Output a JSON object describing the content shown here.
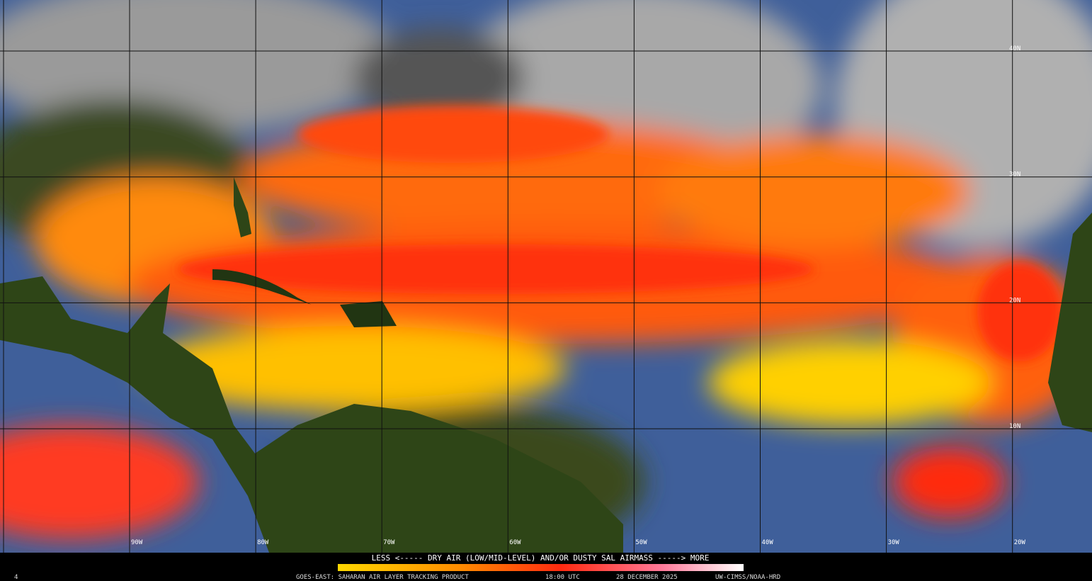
{
  "map": {
    "lat_labels": [
      "40N",
      "30N",
      "20N",
      "10N"
    ],
    "lon_labels": [
      "90W",
      "80W",
      "70W",
      "60W",
      "50W",
      "40W",
      "30W",
      "20W"
    ]
  },
  "legend": {
    "caption": "LESS <----- DRY AIR (LOW/MID-LEVEL) AND/OR DUSTY SAL AIRMASS -----> MORE"
  },
  "footer": {
    "frame": "4",
    "product": "GOES-EAST: SAHARAN AIR LAYER TRACKING PRODUCT",
    "time": "18:00 UTC",
    "date": "28 DECEMBER 2025",
    "credit": "UW-CIMSS/NOAA-HRD"
  }
}
